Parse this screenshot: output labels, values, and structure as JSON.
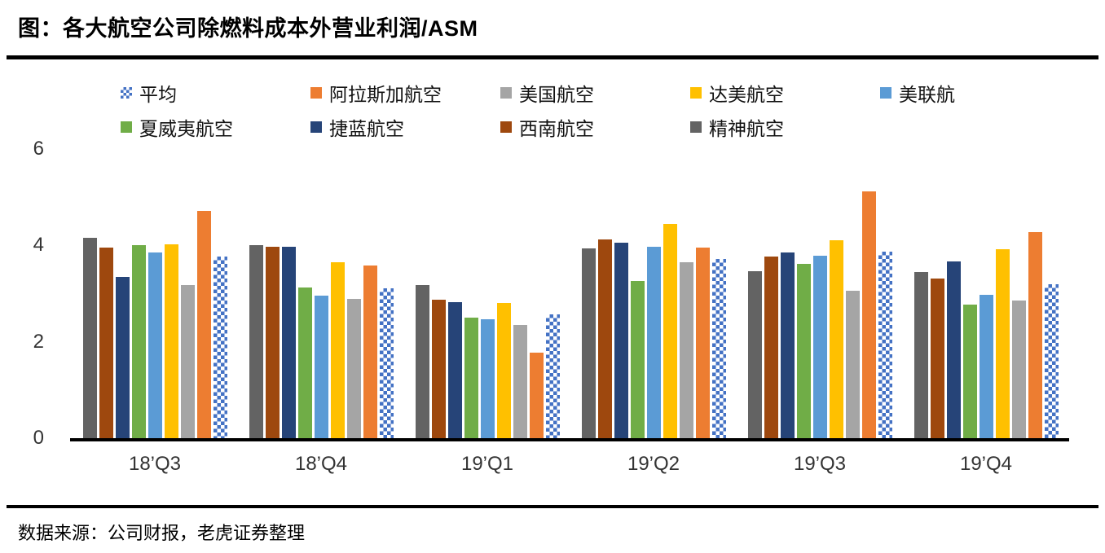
{
  "header": {
    "title": "图：各大航空公司除燃料成本外营业利润/ASM"
  },
  "legend": {
    "items": [
      {
        "id": "average",
        "label": "平均",
        "color": "#4472C4",
        "pattern": "checker"
      },
      {
        "id": "alaska-airlines",
        "label": "阿拉斯加航空",
        "color": "#ED7D31",
        "pattern": "solid"
      },
      {
        "id": "american-airlines",
        "label": "美国航空",
        "color": "#A5A5A5",
        "pattern": "solid"
      },
      {
        "id": "delta-airlines",
        "label": "达美航空",
        "color": "#FFC000",
        "pattern": "solid"
      },
      {
        "id": "united-airlines",
        "label": "美联航",
        "color": "#5B9BD5",
        "pattern": "solid"
      },
      {
        "id": "hawaiian-airlines",
        "label": "夏威夷航空",
        "color": "#70AD47",
        "pattern": "solid"
      },
      {
        "id": "jetblue-airways",
        "label": "捷蓝航空",
        "color": "#264478",
        "pattern": "solid"
      },
      {
        "id": "southwest-airlines",
        "label": "西南航空",
        "color": "#9E480E",
        "pattern": "solid"
      },
      {
        "id": "spirit-airlines",
        "label": "精神航空",
        "color": "#636363",
        "pattern": "solid"
      }
    ]
  },
  "chart_data": {
    "type": "bar",
    "title": "图：各大航空公司除燃料成本外营业利润/ASM",
    "categories": [
      "18’Q3",
      "18’Q4",
      "19’Q1",
      "19’Q2",
      "19’Q3",
      "19’Q4"
    ],
    "series": [
      {
        "id": "spirit-airlines",
        "name": "精神航空",
        "color": "#636363",
        "pattern": "solid",
        "values": [
          4.15,
          4.0,
          3.18,
          3.93,
          3.47,
          3.45
        ]
      },
      {
        "id": "southwest-airlines",
        "name": "西南航空",
        "color": "#9E480E",
        "pattern": "solid",
        "values": [
          3.95,
          3.97,
          2.88,
          4.12,
          3.77,
          3.32
        ]
      },
      {
        "id": "jetblue-airways",
        "name": "捷蓝航空",
        "color": "#264478",
        "pattern": "solid",
        "values": [
          3.35,
          3.98,
          2.83,
          4.05,
          3.85,
          3.67
        ]
      },
      {
        "id": "hawaiian-airlines",
        "name": "夏威夷航空",
        "color": "#70AD47",
        "pattern": "solid",
        "values": [
          4.0,
          3.13,
          2.5,
          3.27,
          3.62,
          2.78
        ]
      },
      {
        "id": "united-airlines",
        "name": "美联航",
        "color": "#5B9BD5",
        "pattern": "solid",
        "values": [
          3.85,
          2.95,
          2.47,
          3.97,
          3.78,
          2.97
        ]
      },
      {
        "id": "delta-airlines",
        "name": "达美航空",
        "color": "#FFC000",
        "pattern": "solid",
        "values": [
          4.03,
          3.65,
          2.81,
          4.45,
          4.1,
          3.92
        ]
      },
      {
        "id": "american-airlines",
        "name": "美国航空",
        "color": "#A5A5A5",
        "pattern": "solid",
        "values": [
          3.18,
          2.89,
          2.35,
          3.65,
          3.06,
          2.86
        ]
      },
      {
        "id": "alaska-airlines",
        "name": "阿拉斯加航空",
        "color": "#ED7D31",
        "pattern": "solid",
        "values": [
          4.72,
          3.58,
          1.77,
          3.95,
          5.12,
          4.28
        ]
      },
      {
        "id": "average",
        "name": "平均",
        "color": "#4472C4",
        "pattern": "checker",
        "values": [
          3.77,
          3.11,
          2.57,
          3.72,
          3.87,
          3.19
        ]
      }
    ],
    "ylim": [
      0,
      6
    ],
    "yticks": [
      0,
      2,
      4,
      6
    ],
    "grid": false,
    "legend_position": "top",
    "xlabel": "",
    "ylabel": ""
  },
  "footer": {
    "source_note": "数据来源：公司财报，老虎证券整理"
  }
}
